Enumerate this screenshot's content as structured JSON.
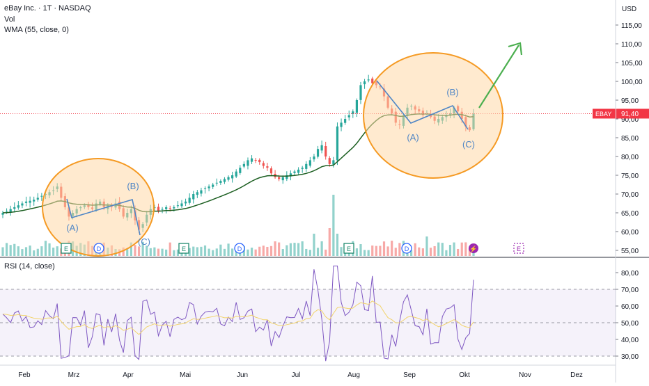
{
  "header": {
    "symbol_line": "eBay Inc. · 1T · NASDAQ",
    "vol_label": "Vol",
    "wma_label": "WMA (55, close, 0)",
    "currency": "USD"
  },
  "colors": {
    "up": "#26a69a",
    "down": "#ef5350",
    "wma": "#1b5e20",
    "rsi": "#7e57c2",
    "rsi_ma": "#f2d36b",
    "circle_stroke": "#f59a23",
    "circle_fill": "#ffd9a8",
    "arrow": "#4caf50",
    "wave": "#4f86c6",
    "price_line": "#f23645"
  },
  "chart_data": [
    {
      "type": "candlestick",
      "name": "price",
      "title": "eBay Inc. · 1T · NASDAQ",
      "ylim": [
        54,
        118
      ],
      "y_ticks": [
        "115,00",
        "110,00",
        "105,00",
        "100,00",
        "95,00",
        "90,00",
        "85,00",
        "80,00",
        "75,00",
        "70,00",
        "65,00",
        "60,00",
        "55,00"
      ],
      "y_tick_values": [
        115,
        110,
        105,
        100,
        95,
        90,
        85,
        80,
        75,
        70,
        65,
        60,
        55
      ],
      "x_ticks": [
        "Feb",
        "Mrz",
        "Apr",
        "Mai",
        "Jun",
        "Jul",
        "Aug",
        "Sep",
        "Okt",
        "Nov",
        "Dez"
      ],
      "last_price": {
        "symbol": "EBAY",
        "value": 91.4,
        "label": "91,40"
      },
      "events": [
        "E",
        "D",
        "D",
        "E",
        "D",
        "E",
        "D"
      ],
      "annotations": [
        "(A)",
        "(B)",
        "(C)",
        "(A)",
        "(B)",
        "(C)"
      ],
      "wma_period": 55,
      "closes_approx": [
        65,
        65.5,
        66,
        66.5,
        67,
        67.5,
        68,
        68.2,
        68.5,
        69,
        69.5,
        70,
        70.5,
        71,
        72,
        69,
        66.5,
        64,
        65,
        66,
        66.5,
        67,
        66.5,
        66,
        67.5,
        68,
        66.5,
        67,
        66.5,
        67.5,
        66,
        64,
        65,
        66,
        63,
        60.5,
        62,
        64.5,
        66,
        66.5,
        65.5,
        66,
        66.5,
        66,
        66.5,
        67,
        67.5,
        68,
        69,
        70,
        70.5,
        71,
        71.5,
        72,
        72.5,
        73,
        73.5,
        74,
        74.5,
        75,
        76,
        77,
        78,
        79,
        79.5,
        79,
        78.5,
        77.5,
        77,
        75.5,
        74.5,
        74,
        74.5,
        75,
        75.5,
        76,
        76.5,
        77,
        78,
        79,
        80,
        82,
        83,
        80,
        78,
        79,
        88,
        89,
        90,
        91,
        92,
        95,
        99,
        100,
        100.5,
        99.5,
        99,
        98.5,
        96,
        93,
        91.5,
        89,
        88.5,
        91,
        93,
        93.5,
        92.5,
        92,
        91,
        91.5,
        90.5,
        89.5,
        90,
        90.5,
        91,
        91.5,
        93,
        92,
        90,
        88,
        87,
        91.4
      ]
    },
    {
      "type": "bar",
      "name": "volume",
      "label": "Vol"
    },
    {
      "type": "line",
      "name": "rsi",
      "title": "RSI (14, close)",
      "ylim": [
        25,
        85
      ],
      "y_ticks": [
        "80,00",
        "70,00",
        "60,00",
        "50,00",
        "40,00",
        "30,00"
      ],
      "y_tick_values": [
        80,
        70,
        60,
        50,
        40,
        30
      ],
      "bands": {
        "upper": 70,
        "middle": 50,
        "lower": 30
      }
    }
  ]
}
